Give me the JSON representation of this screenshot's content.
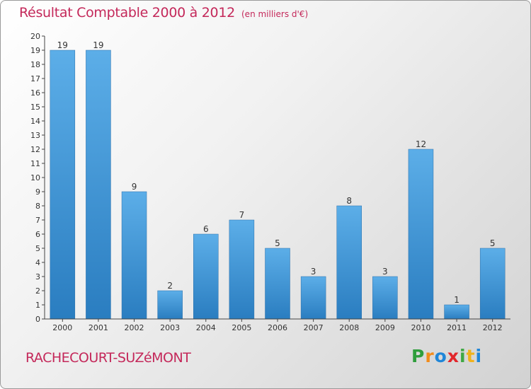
{
  "header": {
    "title": "Résultat Comptable 2000 à 2012",
    "subtitle": "(en milliers d'€)"
  },
  "footer": {
    "place": "RACHECOURT-SUZéMONT",
    "logo_letters": [
      "P",
      "r",
      "o",
      "x",
      "i",
      "t",
      "i"
    ],
    "logo_colors": [
      "#2f9e3c",
      "#f28c1c",
      "#1f86d8",
      "#e2262b",
      "#3fa844",
      "#f0b21c",
      "#1f86d8"
    ]
  },
  "colors": {
    "bar_light": "#5caee8",
    "bar_dark": "#2a7dc0",
    "axis": "#444444",
    "text": "#333333"
  },
  "chart_data": {
    "type": "bar",
    "title": "Résultat Comptable 2000 à 2012",
    "subtitle": "(en milliers d'€)",
    "categories": [
      "2000",
      "2001",
      "2002",
      "2003",
      "2004",
      "2005",
      "2006",
      "2007",
      "2008",
      "2009",
      "2010",
      "2011",
      "2012"
    ],
    "values": [
      19,
      19,
      9,
      2,
      6,
      7,
      5,
      3,
      8,
      3,
      12,
      1,
      5
    ],
    "data_labels": [
      "19",
      "19",
      "9",
      "2",
      "6",
      "7",
      "5",
      "3",
      "8",
      "3",
      "12",
      "1",
      "5"
    ],
    "xlabel": "",
    "ylabel": "",
    "ylim": [
      0,
      20
    ],
    "yticks": [
      "0",
      "1",
      "2",
      "3",
      "4",
      "5",
      "6",
      "7",
      "8",
      "9",
      "10",
      "11",
      "12",
      "13",
      "14",
      "15",
      "16",
      "17",
      "18",
      "19",
      "20"
    ],
    "grid": false
  }
}
